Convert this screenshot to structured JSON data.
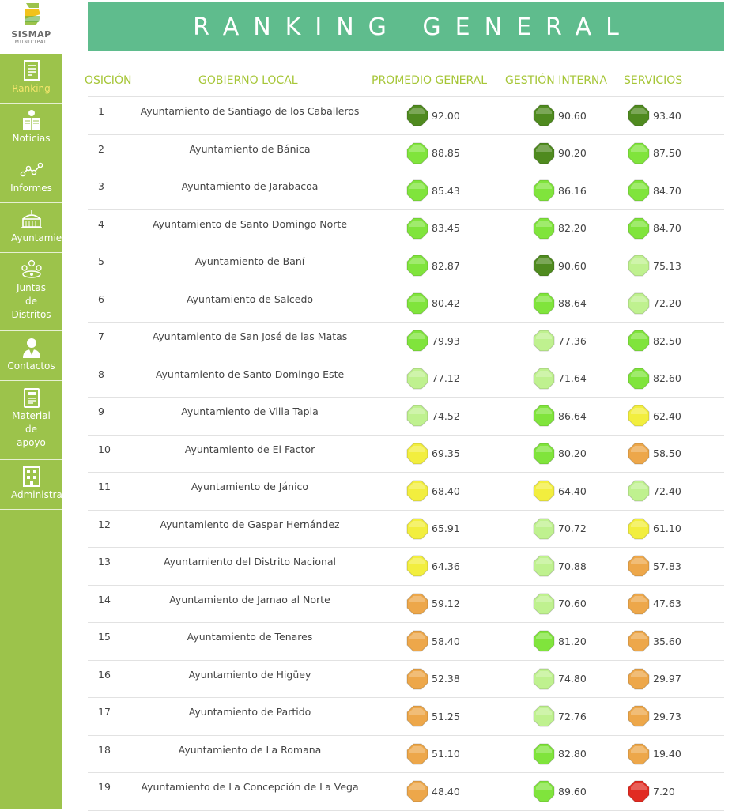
{
  "brand": {
    "name": "SISMAP",
    "sub": "MUNICIPAL"
  },
  "nav": [
    {
      "label": "Ranking",
      "icon": "document-icon",
      "active": true
    },
    {
      "label": "Noticias",
      "icon": "news-reader-icon"
    },
    {
      "label": "Informes",
      "icon": "line-chart-icon"
    },
    {
      "label": "Ayuntamie",
      "icon": "building-icon"
    },
    {
      "label": "Juntas\nde\nDistritos",
      "icon": "group-icon"
    },
    {
      "label": "Contactos",
      "icon": "person-icon"
    },
    {
      "label": "Material\nde\napoyo",
      "icon": "clipboard-icon"
    },
    {
      "label": "Administra",
      "icon": "office-building-icon"
    }
  ],
  "title": "RANKING GENERAL",
  "columns": {
    "position": "OSICIÓN",
    "government": "GOBIERNO LOCAL",
    "average": "PROMEDIO GENERAL",
    "internal": "GESTIÓN INTERNA",
    "services": "SERVICIOS"
  },
  "score_colors": {
    "dark_green": "#4f8a1f",
    "green": "#80e43c",
    "light_green": "#bff18f",
    "yellow": "#f2ee3e",
    "orange": "#eda74a",
    "red": "#e12b22"
  },
  "rows": [
    {
      "pos": "1",
      "name": "Ayuntamiento de Santiago de los Caballeros",
      "avg": "92.00",
      "avg_c": "dark_green",
      "gi": "90.60",
      "gi_c": "dark_green",
      "sv": "93.40",
      "sv_c": "dark_green"
    },
    {
      "pos": "2",
      "name": "Ayuntamiento de Bánica",
      "avg": "88.85",
      "avg_c": "green",
      "gi": "90.20",
      "gi_c": "dark_green",
      "sv": "87.50",
      "sv_c": "green"
    },
    {
      "pos": "3",
      "name": "Ayuntamiento de Jarabacoa",
      "avg": "85.43",
      "avg_c": "green",
      "gi": "86.16",
      "gi_c": "green",
      "sv": "84.70",
      "sv_c": "green"
    },
    {
      "pos": "4",
      "name": "Ayuntamiento de Santo Domingo Norte",
      "avg": "83.45",
      "avg_c": "green",
      "gi": "82.20",
      "gi_c": "green",
      "sv": "84.70",
      "sv_c": "green"
    },
    {
      "pos": "5",
      "name": "Ayuntamiento de Baní",
      "avg": "82.87",
      "avg_c": "green",
      "gi": "90.60",
      "gi_c": "dark_green",
      "sv": "75.13",
      "sv_c": "light_green"
    },
    {
      "pos": "6",
      "name": "Ayuntamiento de Salcedo",
      "avg": "80.42",
      "avg_c": "green",
      "gi": "88.64",
      "gi_c": "green",
      "sv": "72.20",
      "sv_c": "light_green"
    },
    {
      "pos": "7",
      "name": "Ayuntamiento de San José de las Matas",
      "avg": "79.93",
      "avg_c": "green",
      "gi": "77.36",
      "gi_c": "light_green",
      "sv": "82.50",
      "sv_c": "green"
    },
    {
      "pos": "8",
      "name": "Ayuntamiento de Santo Domingo Este",
      "avg": "77.12",
      "avg_c": "light_green",
      "gi": "71.64",
      "gi_c": "light_green",
      "sv": "82.60",
      "sv_c": "green"
    },
    {
      "pos": "9",
      "name": "Ayuntamiento de Villa Tapia",
      "avg": "74.52",
      "avg_c": "light_green",
      "gi": "86.64",
      "gi_c": "green",
      "sv": "62.40",
      "sv_c": "yellow"
    },
    {
      "pos": "10",
      "name": "Ayuntamiento de El Factor",
      "avg": "69.35",
      "avg_c": "yellow",
      "gi": "80.20",
      "gi_c": "green",
      "sv": "58.50",
      "sv_c": "orange"
    },
    {
      "pos": "11",
      "name": "Ayuntamiento de Jánico",
      "avg": "68.40",
      "avg_c": "yellow",
      "gi": "64.40",
      "gi_c": "yellow",
      "sv": "72.40",
      "sv_c": "light_green"
    },
    {
      "pos": "12",
      "name": "Ayuntamiento de Gaspar Hernández",
      "avg": "65.91",
      "avg_c": "yellow",
      "gi": "70.72",
      "gi_c": "light_green",
      "sv": "61.10",
      "sv_c": "yellow"
    },
    {
      "pos": "13",
      "name": "Ayuntamiento del Distrito Nacional",
      "avg": "64.36",
      "avg_c": "yellow",
      "gi": "70.88",
      "gi_c": "light_green",
      "sv": "57.83",
      "sv_c": "orange"
    },
    {
      "pos": "14",
      "name": "Ayuntamiento de Jamao al Norte",
      "avg": "59.12",
      "avg_c": "orange",
      "gi": "70.60",
      "gi_c": "light_green",
      "sv": "47.63",
      "sv_c": "orange"
    },
    {
      "pos": "15",
      "name": "Ayuntamiento de Tenares",
      "avg": "58.40",
      "avg_c": "orange",
      "gi": "81.20",
      "gi_c": "green",
      "sv": "35.60",
      "sv_c": "orange"
    },
    {
      "pos": "16",
      "name": "Ayuntamiento de Higüey",
      "avg": "52.38",
      "avg_c": "orange",
      "gi": "74.80",
      "gi_c": "light_green",
      "sv": "29.97",
      "sv_c": "orange"
    },
    {
      "pos": "17",
      "name": "Ayuntamiento de Partido",
      "avg": "51.25",
      "avg_c": "orange",
      "gi": "72.76",
      "gi_c": "light_green",
      "sv": "29.73",
      "sv_c": "orange"
    },
    {
      "pos": "18",
      "name": "Ayuntamiento de La Romana",
      "avg": "51.10",
      "avg_c": "orange",
      "gi": "82.80",
      "gi_c": "green",
      "sv": "19.40",
      "sv_c": "orange"
    },
    {
      "pos": "19",
      "name": "Ayuntamiento de La Concepción de La Vega",
      "avg": "48.40",
      "avg_c": "orange",
      "gi": "89.60",
      "gi_c": "green",
      "sv": "7.20",
      "sv_c": "red"
    }
  ]
}
